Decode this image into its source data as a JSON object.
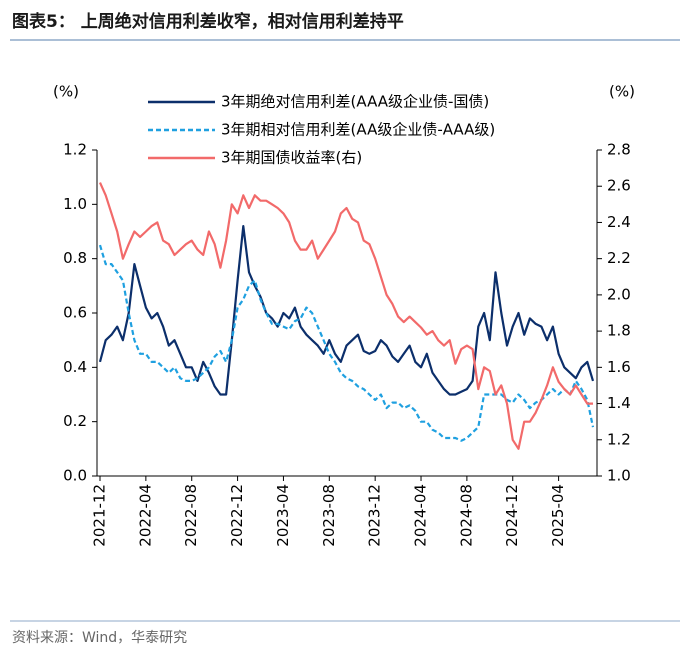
{
  "chart_data": {
    "type": "line",
    "title": "图表5： 上周绝对信用利差收窄，相对信用利差持平",
    "source": "资料来源：Wind，华泰研究",
    "y_label": "(%)",
    "y2_label": "(%)",
    "categories": [
      "2021-12",
      null,
      null,
      null,
      null,
      null,
      null,
      null,
      "2022-04",
      null,
      null,
      null,
      null,
      null,
      null,
      null,
      "2022-08",
      null,
      null,
      null,
      null,
      null,
      null,
      null,
      "2022-12",
      null,
      null,
      null,
      null,
      null,
      null,
      null,
      "2023-04",
      null,
      null,
      null,
      null,
      null,
      null,
      null,
      "2023-08",
      null,
      null,
      null,
      null,
      null,
      null,
      null,
      "2023-12",
      null,
      null,
      null,
      null,
      null,
      null,
      null,
      "2024-04",
      null,
      null,
      null,
      null,
      null,
      null,
      null,
      "2024-08",
      null,
      null,
      null,
      null,
      null,
      null,
      null,
      "2024-12",
      null,
      null,
      null,
      null,
      null,
      null,
      null,
      "2025-04",
      null,
      null,
      null,
      null,
      null,
      null
    ],
    "series": [
      {
        "name": "3年期绝对信用利差(AAA级企业债-国债)",
        "color": "#0c2f6b",
        "dash": false,
        "values": [
          0.42,
          0.5,
          0.52,
          0.55,
          0.5,
          0.6,
          0.78,
          0.7,
          0.62,
          0.58,
          0.6,
          0.55,
          0.48,
          0.5,
          0.45,
          0.4,
          0.4,
          0.35,
          0.42,
          0.38,
          0.33,
          0.3,
          0.3,
          0.5,
          0.72,
          0.92,
          0.75,
          0.7,
          0.66,
          0.6,
          0.58,
          0.55,
          0.6,
          0.58,
          0.62,
          0.55,
          0.52,
          0.5,
          0.48,
          0.45,
          0.5,
          0.45,
          0.42,
          0.48,
          0.5,
          0.52,
          0.46,
          0.45,
          0.46,
          0.5,
          0.48,
          0.44,
          0.42,
          0.45,
          0.48,
          0.42,
          0.4,
          0.45,
          0.38,
          0.35,
          0.32,
          0.3,
          0.3,
          0.31,
          0.32,
          0.35,
          0.55,
          0.6,
          0.5,
          0.75,
          0.6,
          0.48,
          0.55,
          0.6,
          0.52,
          0.58,
          0.56,
          0.55,
          0.5,
          0.55,
          0.45,
          0.4,
          0.38,
          0.36,
          0.4,
          0.42,
          0.35
        ]
      },
      {
        "name": "3年期相对信用利差(AA级企业债-AAA级)",
        "color": "#1fa0e0",
        "dash": true,
        "values": [
          0.85,
          0.78,
          0.78,
          0.75,
          0.72,
          0.6,
          0.5,
          0.45,
          0.45,
          0.42,
          0.42,
          0.4,
          0.38,
          0.4,
          0.36,
          0.35,
          0.35,
          0.36,
          0.38,
          0.4,
          0.44,
          0.46,
          0.42,
          0.5,
          0.62,
          0.65,
          0.7,
          0.72,
          0.65,
          0.6,
          0.56,
          0.56,
          0.55,
          0.54,
          0.57,
          0.58,
          0.62,
          0.6,
          0.55,
          0.5,
          0.45,
          0.42,
          0.38,
          0.36,
          0.35,
          0.33,
          0.32,
          0.3,
          0.28,
          0.3,
          0.25,
          0.27,
          0.27,
          0.25,
          0.26,
          0.24,
          0.2,
          0.2,
          0.17,
          0.16,
          0.14,
          0.14,
          0.14,
          0.13,
          0.14,
          0.16,
          0.18,
          0.3,
          0.3,
          0.3,
          0.3,
          0.28,
          0.27,
          0.3,
          0.28,
          0.25,
          0.27,
          0.28,
          0.3,
          0.32,
          0.3,
          0.32,
          0.3,
          0.35,
          0.32,
          0.28,
          0.18
        ]
      },
      {
        "name": "3年期国债收益率(右)",
        "color": "#f26a6a",
        "dash": false,
        "axis": "y2",
        "values": [
          2.62,
          2.55,
          2.45,
          2.35,
          2.2,
          2.28,
          2.35,
          2.32,
          2.35,
          2.38,
          2.4,
          2.3,
          2.28,
          2.22,
          2.25,
          2.28,
          2.3,
          2.25,
          2.22,
          2.35,
          2.28,
          2.15,
          2.3,
          2.5,
          2.45,
          2.55,
          2.48,
          2.55,
          2.52,
          2.52,
          2.5,
          2.48,
          2.45,
          2.4,
          2.3,
          2.25,
          2.25,
          2.3,
          2.2,
          2.25,
          2.3,
          2.35,
          2.45,
          2.48,
          2.42,
          2.4,
          2.3,
          2.28,
          2.2,
          2.1,
          2.0,
          1.95,
          1.88,
          1.85,
          1.88,
          1.85,
          1.82,
          1.78,
          1.8,
          1.75,
          1.72,
          1.75,
          1.62,
          1.7,
          1.72,
          1.7,
          1.48,
          1.6,
          1.58,
          1.45,
          1.5,
          1.4,
          1.2,
          1.15,
          1.3,
          1.3,
          1.35,
          1.42,
          1.5,
          1.6,
          1.52,
          1.48,
          1.45,
          1.5,
          1.45,
          1.4,
          1.4
        ]
      }
    ],
    "ylim": [
      0,
      1.2
    ],
    "yticks": [
      {
        "value": 0,
        "label": "0.0"
      },
      0.2,
      0.4,
      0.6,
      0.8,
      {
        "value": 1,
        "label": "1.0"
      },
      1.2
    ],
    "y2lim": [
      1,
      2.8
    ],
    "y2ticks": [
      {
        "value": 1,
        "label": "1.0"
      },
      1.2,
      1.4,
      1.6,
      1.8,
      {
        "value": 2,
        "label": "2.0"
      },
      2.2,
      2.4,
      2.6,
      2.8
    ],
    "grid": false
  }
}
